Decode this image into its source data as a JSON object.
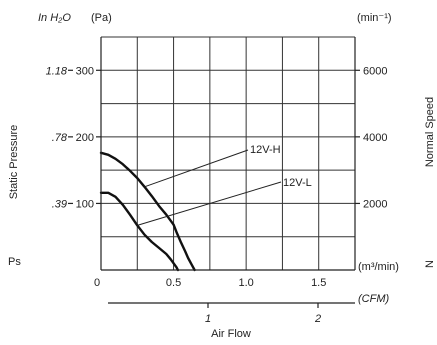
{
  "chart_data": {
    "type": "line",
    "title": "",
    "xlabel": "Air Flow",
    "units": {
      "pressure_in": "In H₂O",
      "pressure_pa": "(Pa)",
      "speed": "(min⁻¹)",
      "flow_m3": "(m³/min)",
      "flow_cfm": "(CFM)"
    },
    "ylabel_left": "Static Pressure",
    "ylabel_left_symbol": "Ps",
    "ylabel_right": "Normal Speed",
    "ylabel_right_symbol": "N",
    "ylim": [
      0,
      350
    ],
    "xlim": [
      0,
      1.75
    ],
    "x_ticks_m3": [
      {
        "value": 0,
        "label": "0"
      },
      {
        "value": 0.5,
        "label": "0.5"
      },
      {
        "value": 1.0,
        "label": "1.0"
      },
      {
        "value": 1.5,
        "label": "1.5"
      }
    ],
    "x_ticks_cfm": [
      {
        "value": 1,
        "label": "1"
      },
      {
        "value": 2,
        "label": "2"
      }
    ],
    "y_ticks_pa": [
      {
        "value": 100,
        "label": "100"
      },
      {
        "value": 200,
        "label": "200"
      },
      {
        "value": 300,
        "label": "300"
      }
    ],
    "y_ticks_inh2o": [
      {
        "value": 100,
        "label": ".39"
      },
      {
        "value": 200,
        "label": ".78"
      },
      {
        "value": 300,
        "label": "1.18"
      }
    ],
    "y_ticks_speed": [
      {
        "value": 100,
        "label": "2000"
      },
      {
        "value": 200,
        "label": "4000"
      },
      {
        "value": 300,
        "label": "6000"
      }
    ],
    "grid": true,
    "series": [
      {
        "name": "12V-H",
        "x": [
          0,
          0.05,
          0.1,
          0.15,
          0.2,
          0.25,
          0.3,
          0.35,
          0.4,
          0.45,
          0.5,
          0.52,
          0.55,
          0.58,
          0.6,
          0.625,
          0.645
        ],
        "y": [
          176,
          173,
          167,
          159,
          149,
          138,
          125,
          111,
          96,
          83,
          68,
          57,
          42,
          28,
          18,
          8,
          0
        ]
      },
      {
        "name": "12V-L",
        "x": [
          0,
          0.05,
          0.1,
          0.15,
          0.2,
          0.25,
          0.3,
          0.35,
          0.4,
          0.45,
          0.48,
          0.5,
          0.52,
          0.53
        ],
        "y": [
          116,
          116,
          110,
          98,
          83,
          67,
          53,
          42,
          33,
          24,
          16,
          10,
          4,
          0
        ]
      }
    ]
  }
}
